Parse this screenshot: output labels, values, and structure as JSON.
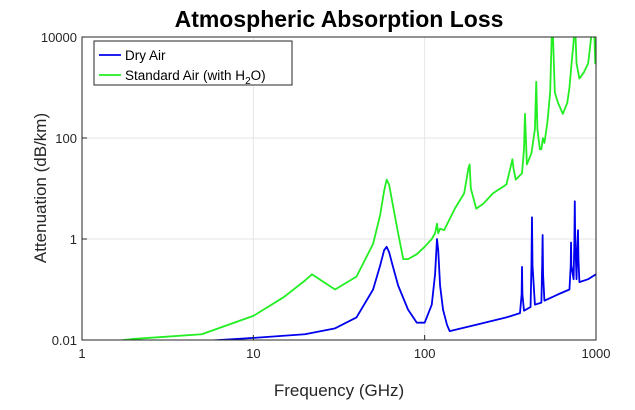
{
  "chart_data": {
    "type": "line",
    "title": "Atmospheric Absorption Loss",
    "xlabel": "Frequency (GHz)",
    "ylabel": "Attenuation (dB/km)",
    "xscale": "log",
    "yscale": "log",
    "xlim": [
      1,
      1000
    ],
    "ylim": [
      0.01,
      10000
    ],
    "xticks": [
      1,
      10,
      100,
      1000
    ],
    "xtick_labels": [
      "1",
      "10",
      "100",
      "1000"
    ],
    "yticks": [
      0.01,
      1,
      100,
      10000
    ],
    "ytick_labels": [
      "0.01",
      "1",
      "100",
      "10000"
    ],
    "grid": true,
    "legend_position": "top-left",
    "series": [
      {
        "name": "Dry Air",
        "color": "#0000ee",
        "x": [
          1,
          2,
          5,
          10,
          20,
          30,
          40,
          50,
          55,
          58,
          60,
          62,
          65,
          70,
          80,
          90,
          100,
          110,
          115,
          118,
          120,
          123,
          128,
          135,
          140,
          200,
          300,
          360,
          368,
          370,
          372,
          380,
          415,
          420,
          423,
          426,
          440,
          480,
          485,
          488,
          491,
          500,
          600,
          700,
          712,
          715,
          718,
          740,
          748,
          752,
          756,
          770,
          780,
          785,
          790,
          800,
          900,
          1000
        ],
        "y": [
          0.0075,
          0.0085,
          0.0095,
          0.011,
          0.013,
          0.017,
          0.028,
          0.1,
          0.3,
          0.6,
          0.7,
          0.55,
          0.3,
          0.12,
          0.04,
          0.022,
          0.022,
          0.05,
          0.2,
          1.0,
          0.6,
          0.12,
          0.04,
          0.02,
          0.015,
          0.02,
          0.028,
          0.034,
          0.08,
          0.28,
          0.08,
          0.038,
          0.045,
          0.3,
          2.7,
          0.3,
          0.05,
          0.055,
          0.3,
          1.2,
          0.2,
          0.06,
          0.08,
          0.1,
          0.3,
          0.85,
          0.3,
          0.16,
          1.0,
          5.6,
          1.0,
          0.16,
          0.9,
          1.5,
          0.4,
          0.14,
          0.16,
          0.2
        ]
      },
      {
        "name": "Standard Air (with H2O)",
        "name_main": "Standard Air (with H",
        "name_sub": "2",
        "name_tail": "O)",
        "color": "#22ee22",
        "x": [
          1,
          2,
          5,
          10,
          15,
          20,
          22,
          25,
          30,
          40,
          50,
          55,
          58,
          60,
          62,
          65,
          70,
          75,
          80,
          90,
          100,
          110,
          115,
          118,
          120,
          123,
          130,
          150,
          170,
          180,
          183,
          186,
          200,
          220,
          250,
          300,
          320,
          325,
          330,
          340,
          370,
          380,
          385,
          395,
          420,
          440,
          448,
          455,
          470,
          480,
          490,
          500,
          520,
          540,
          556,
          575,
          600,
          640,
          680,
          700,
          720,
          740,
          752,
          770,
          800,
          850,
          900,
          970,
          990,
          1000
        ],
        "y": [
          0.008,
          0.0105,
          0.013,
          0.03,
          0.07,
          0.15,
          0.2,
          0.15,
          0.1,
          0.18,
          0.8,
          3.0,
          9.0,
          15.0,
          12.0,
          5.0,
          1.3,
          0.4,
          0.4,
          0.5,
          0.7,
          1.0,
          1.3,
          2.0,
          1.3,
          1.6,
          1.5,
          4.0,
          8.0,
          25.0,
          30.0,
          10.0,
          4.0,
          5.0,
          8.0,
          12.0,
          30.0,
          38.0,
          25.0,
          15.0,
          20.0,
          60.0,
          300.0,
          30.0,
          50.0,
          150.0,
          1300.0,
          150.0,
          60.0,
          60.0,
          100.0,
          80.0,
          200.0,
          800.0,
          27000.0,
          800.0,
          500.0,
          300.0,
          500.0,
          1000.0,
          3000.0,
          8000.0,
          26000.0,
          3000.0,
          1500.0,
          2000.0,
          3000.0,
          27000.0,
          3000.0,
          5000.0
        ]
      }
    ]
  }
}
